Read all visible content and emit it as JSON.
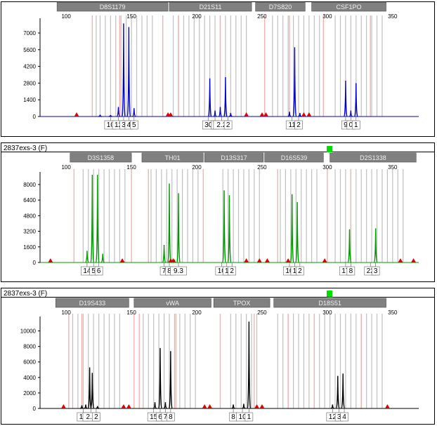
{
  "colors": {
    "panel1": "#0000cc",
    "panel2": "#009900",
    "panel3": "#000000",
    "marker_box": "#808080",
    "bin_gray": "#c0c0c0",
    "bin_pink": "#f2b2b2",
    "size_std": "#e00000",
    "status": "#00dd00"
  },
  "chart_data": [
    {
      "type": "line",
      "title": "",
      "sample_label": "",
      "x_ticks": [
        100,
        150,
        200,
        250,
        300,
        350
      ],
      "x_range": [
        80,
        370
      ],
      "y_ticks": [
        0,
        1400,
        2800,
        4200,
        5600,
        7000
      ],
      "y_range": [
        0,
        8000
      ],
      "markers": [
        {
          "label": "D8S1179",
          "range": [
            93,
            178
          ]
        },
        {
          "label": "D21S11",
          "range": [
            179,
            242
          ]
        },
        {
          "label": "D7S820",
          "range": [
            245,
            283
          ]
        },
        {
          "label": "CSF1PO",
          "range": [
            288,
            345
          ]
        }
      ],
      "bins": [
        123,
        126,
        130,
        134,
        138,
        142,
        146,
        150,
        154,
        158,
        162,
        166,
        182,
        186,
        190,
        194,
        198,
        202,
        206,
        210,
        214,
        218,
        222,
        226,
        230,
        234,
        238,
        258,
        262,
        266,
        270,
        274,
        278,
        282,
        286,
        290,
        294,
        306,
        310,
        314,
        318,
        322,
        326,
        330,
        334,
        338,
        342
      ],
      "pink_bins": [
        120,
        141,
        174,
        186,
        218,
        252,
        271,
        297,
        333
      ],
      "size_std": [
        108,
        178,
        180,
        238,
        250,
        253,
        282,
        286
      ],
      "peaks": [
        {
          "x": 126,
          "h": 150
        },
        {
          "x": 134,
          "h": 120
        },
        {
          "x": 140,
          "h": 800
        },
        {
          "x": 144,
          "h": 7800
        },
        {
          "x": 148,
          "h": 7500
        },
        {
          "x": 152,
          "h": 700
        },
        {
          "x": 210,
          "h": 3200
        },
        {
          "x": 214,
          "h": 500
        },
        {
          "x": 218,
          "h": 800
        },
        {
          "x": 222,
          "h": 3300
        },
        {
          "x": 226,
          "h": 300
        },
        {
          "x": 271,
          "h": 400
        },
        {
          "x": 275,
          "h": 5800
        },
        {
          "x": 279,
          "h": 300
        },
        {
          "x": 314,
          "h": 3000
        },
        {
          "x": 318,
          "h": 500
        },
        {
          "x": 322,
          "h": 2800
        }
      ],
      "allele_labels": [
        {
          "text": "10",
          "x": 134
        },
        {
          "text": "12",
          "x": 140
        },
        {
          "text": "3",
          "x": 144
        },
        {
          "text": "4",
          "x": 148
        },
        {
          "text": "5",
          "x": 152
        },
        {
          "text": "30",
          "x": 209
        },
        {
          "text": "1",
          "x": 214
        },
        {
          "text": "2.2",
          "x": 219
        },
        {
          "text": "2",
          "x": 224
        },
        {
          "text": "11",
          "x": 273
        },
        {
          "text": "2",
          "x": 278
        },
        {
          "text": "9",
          "x": 314
        },
        {
          "text": "0",
          "x": 318
        },
        {
          "text": "1",
          "x": 322
        }
      ]
    },
    {
      "type": "line",
      "title": "",
      "sample_label": "2837exs-3 (F)",
      "x_ticks": [
        100,
        150,
        200,
        250,
        300,
        350
      ],
      "x_range": [
        80,
        370
      ],
      "y_ticks": [
        0,
        1600,
        3200,
        4800,
        6400,
        8000
      ],
      "y_range": [
        0,
        9000
      ],
      "markers": [
        {
          "label": "D3S1358",
          "range": [
            103,
            150
          ]
        },
        {
          "label": "TH01",
          "range": [
            158,
            205
          ]
        },
        {
          "label": "D13S317",
          "range": [
            206,
            251
          ]
        },
        {
          "label": "D16S539",
          "range": [
            252,
            297
          ]
        },
        {
          "label": "D2S1338",
          "range": [
            302,
            368
          ]
        }
      ],
      "bins": [
        113,
        117,
        121,
        125,
        129,
        133,
        137,
        141,
        145,
        165,
        169,
        173,
        177,
        181,
        185,
        189,
        193,
        197,
        201,
        220,
        224,
        228,
        232,
        236,
        240,
        244,
        248,
        264,
        268,
        272,
        276,
        280,
        284,
        288,
        292,
        306,
        310,
        314,
        318,
        322,
        326,
        330,
        334,
        338,
        342,
        346,
        350,
        354,
        358
      ],
      "pink_bins": [
        106,
        150,
        163,
        205,
        262,
        300,
        318
      ],
      "size_std": [
        88,
        143,
        180,
        182,
        238,
        248,
        254,
        270,
        298,
        356,
        366
      ],
      "peaks": [
        {
          "x": 116,
          "h": 1200
        },
        {
          "x": 120,
          "h": 9000
        },
        {
          "x": 124,
          "h": 9000
        },
        {
          "x": 128,
          "h": 900
        },
        {
          "x": 175,
          "h": 1800
        },
        {
          "x": 179,
          "h": 8100
        },
        {
          "x": 183,
          "h": 300
        },
        {
          "x": 186,
          "h": 7100
        },
        {
          "x": 221,
          "h": 7400
        },
        {
          "x": 225,
          "h": 6900
        },
        {
          "x": 273,
          "h": 7000
        },
        {
          "x": 277,
          "h": 6200
        },
        {
          "x": 317,
          "h": 3400
        },
        {
          "x": 337,
          "h": 3500
        }
      ],
      "allele_labels": [
        {
          "text": "14",
          "x": 116
        },
        {
          "text": "5",
          "x": 121
        },
        {
          "text": "6",
          "x": 125
        },
        {
          "text": "7",
          "x": 175
        },
        {
          "text": "8",
          "x": 179
        },
        {
          "text": "9.3",
          "x": 186
        },
        {
          "text": "10",
          "x": 219
        },
        {
          "text": "1",
          "x": 223
        },
        {
          "text": "2",
          "x": 227
        },
        {
          "text": "10",
          "x": 271
        },
        {
          "text": "1",
          "x": 275
        },
        {
          "text": "2",
          "x": 279
        },
        {
          "text": "17",
          "x": 314
        },
        {
          "text": "8",
          "x": 318
        },
        {
          "text": "22",
          "x": 333
        },
        {
          "text": "3",
          "x": 337
        }
      ]
    },
    {
      "type": "line",
      "title": "",
      "sample_label": "2837exs-3 (F)",
      "x_ticks": [
        100,
        150,
        200,
        250,
        300,
        350
      ],
      "x_range": [
        80,
        370
      ],
      "y_ticks": [
        0,
        2000,
        4000,
        6000,
        8000,
        10000
      ],
      "y_range": [
        0,
        11500
      ],
      "markers": [
        {
          "label": "D19S433",
          "range": [
            92,
            148
          ]
        },
        {
          "label": "vWA",
          "range": [
            152,
            211
          ]
        },
        {
          "label": "TPOX",
          "range": [
            213,
            256
          ]
        },
        {
          "label": "D18S51",
          "range": [
            259,
            345
          ]
        }
      ],
      "bins": [
        105,
        109,
        113,
        117,
        121,
        125,
        129,
        133,
        137,
        141,
        159,
        163,
        167,
        171,
        175,
        179,
        183,
        187,
        191,
        195,
        199,
        226,
        230,
        234,
        238,
        242,
        246,
        262,
        266,
        270,
        274,
        278,
        282,
        286,
        290,
        294,
        298,
        302,
        306,
        310,
        314,
        318,
        322,
        326,
        330,
        334,
        338,
        342
      ],
      "pink_bins": [
        102,
        112,
        152,
        156,
        184,
        218,
        244,
        270,
        290,
        326
      ],
      "size_std": [
        98,
        144,
        148,
        206,
        210,
        246,
        250,
        346
      ],
      "peaks": [
        {
          "x": 112,
          "h": 400
        },
        {
          "x": 115,
          "h": 500
        },
        {
          "x": 118,
          "h": 5300
        },
        {
          "x": 120,
          "h": 4600
        },
        {
          "x": 124,
          "h": 300
        },
        {
          "x": 168,
          "h": 800
        },
        {
          "x": 172,
          "h": 7800
        },
        {
          "x": 176,
          "h": 800
        },
        {
          "x": 180,
          "h": 7400
        },
        {
          "x": 228,
          "h": 500
        },
        {
          "x": 236,
          "h": 600
        },
        {
          "x": 240,
          "h": 11200
        },
        {
          "x": 304,
          "h": 500
        },
        {
          "x": 308,
          "h": 4200
        },
        {
          "x": 312,
          "h": 4500
        }
      ],
      "allele_labels": [
        {
          "text": "12",
          "x": 113
        },
        {
          "text": "2.2",
          "x": 119
        },
        {
          "text": "2",
          "x": 123
        },
        {
          "text": "15",
          "x": 167
        },
        {
          "text": "6",
          "x": 172
        },
        {
          "text": "7",
          "x": 176
        },
        {
          "text": "8",
          "x": 180
        },
        {
          "text": "8",
          "x": 228
        },
        {
          "text": "10",
          "x": 235
        },
        {
          "text": "1",
          "x": 240
        },
        {
          "text": "12",
          "x": 304
        },
        {
          "text": "3",
          "x": 309
        },
        {
          "text": "4",
          "x": 313
        }
      ]
    }
  ]
}
